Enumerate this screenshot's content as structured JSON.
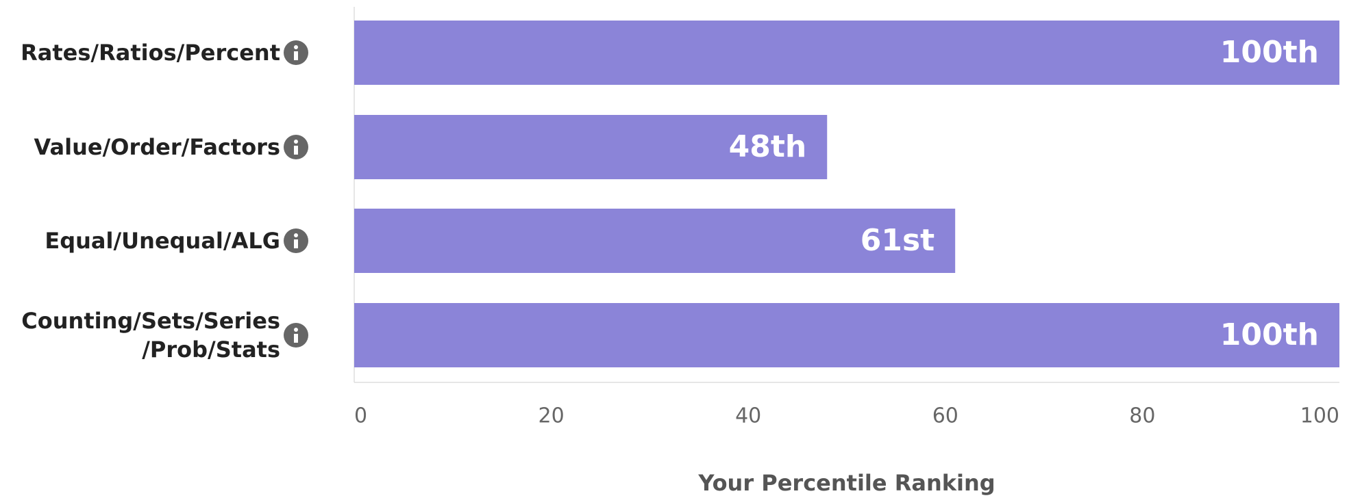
{
  "chart_data": {
    "type": "bar",
    "orientation": "horizontal",
    "categories": [
      "Rates/Ratios/Percent",
      "Value/Order/Factors",
      "Equal/Unequal/ALG",
      "Counting/Sets/Series\n/Prob/Stats"
    ],
    "values": [
      100,
      48,
      61,
      100
    ],
    "value_labels": [
      "100th",
      "48th",
      "61st",
      "100th"
    ],
    "color": "#8b84d8",
    "xlim": [
      0,
      100
    ],
    "xticks": [
      0,
      20,
      40,
      60,
      80,
      100
    ],
    "xlabel": "Your Percentile Ranking"
  }
}
